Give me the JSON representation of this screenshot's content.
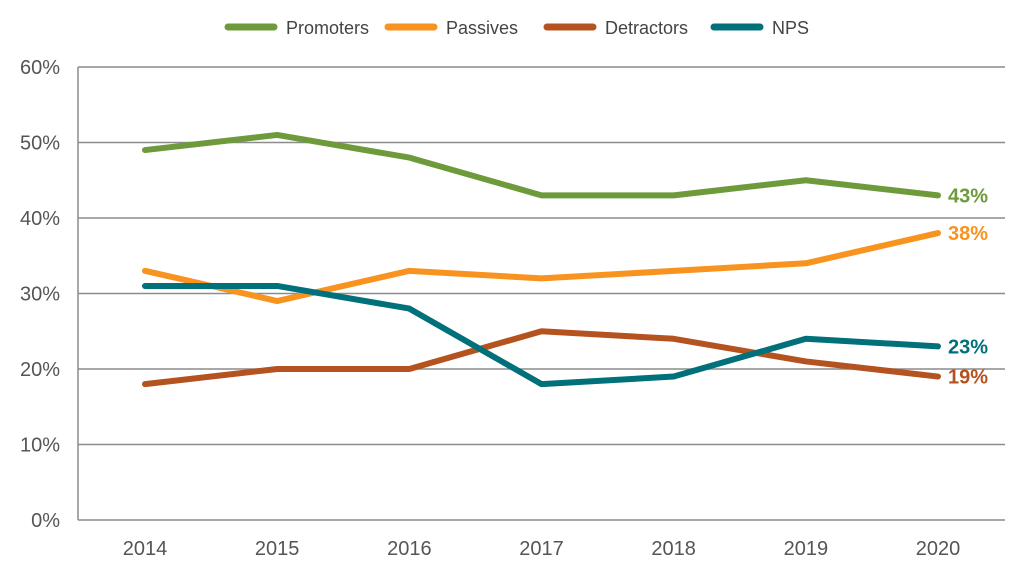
{
  "chart_data": {
    "type": "line",
    "title": "",
    "xlabel": "",
    "ylabel": "",
    "categories": [
      "2014",
      "2015",
      "2016",
      "2017",
      "2018",
      "2019",
      "2020"
    ],
    "ylim": [
      0,
      60
    ],
    "yticks": [
      "0%",
      "10%",
      "20%",
      "30%",
      "40%",
      "50%",
      "60%"
    ],
    "grid": true,
    "legend_position": "top",
    "series": [
      {
        "name": "Promoters",
        "color": "#6e9a3c",
        "values": [
          49,
          51,
          48,
          43,
          43,
          45,
          43
        ],
        "end_label": "43%"
      },
      {
        "name": "Passives",
        "color": "#f7931e",
        "values": [
          33,
          29,
          33,
          32,
          33,
          34,
          38
        ],
        "end_label": "38%"
      },
      {
        "name": "Detractors",
        "color": "#b4531f",
        "values": [
          18,
          20,
          20,
          25,
          24,
          21,
          19
        ],
        "end_label": "19%"
      },
      {
        "name": "NPS",
        "color": "#00707a",
        "values": [
          31,
          31,
          28,
          18,
          19,
          24,
          23
        ],
        "end_label": "23%"
      }
    ]
  }
}
